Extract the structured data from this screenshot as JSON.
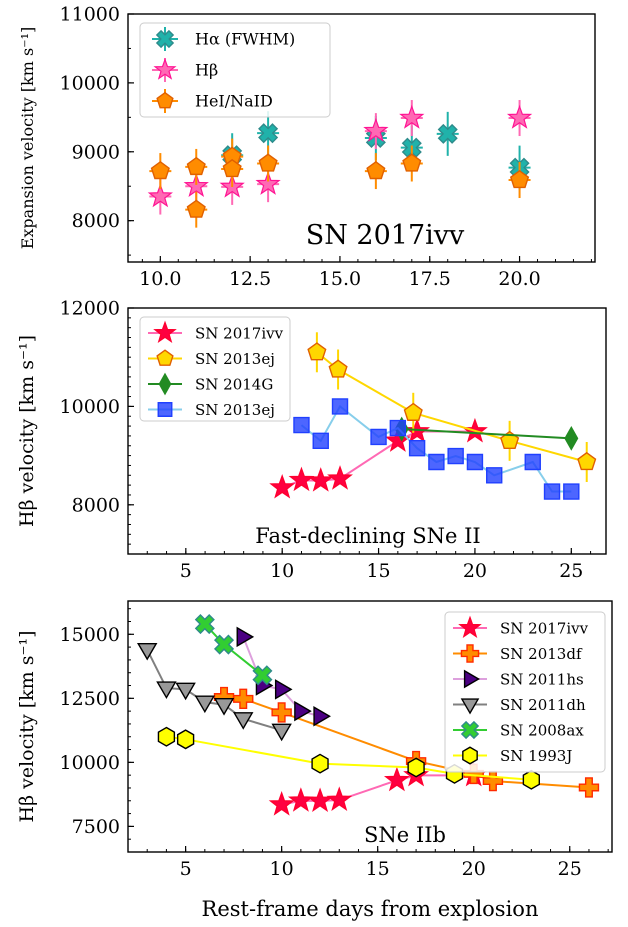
{
  "chart_data": [
    {
      "type": "scatter",
      "annotation": "SN 2017ivv",
      "ylabel": "Expansion velocity [km s⁻¹]",
      "xlim": [
        9.1,
        22.1
      ],
      "ylim": [
        7400,
        11000
      ],
      "xticks": [
        10,
        12.5,
        15,
        17.5,
        20
      ],
      "xtick_labels": [
        "10.0",
        "12.5",
        "15.0",
        "17.5",
        "20.0"
      ],
      "yticks": [
        8000,
        9000,
        10000,
        11000
      ],
      "legend_position": "top-left",
      "series": [
        {
          "name": "Hα (FWHM)",
          "color": "#20b2aa",
          "marker": "x",
          "x": [
            12,
            13,
            16,
            17,
            18,
            20
          ],
          "y": [
            8950,
            9270,
            9200,
            9060,
            9260,
            8770
          ]
        },
        {
          "name": "Hβ",
          "color": "#ff69b4",
          "marker": "star",
          "x": [
            10,
            11,
            12,
            13,
            16,
            17,
            20
          ],
          "y": [
            8350,
            8500,
            8490,
            8530,
            9300,
            9490,
            9490
          ]
        },
        {
          "name": "HeI/NaID",
          "color": "#ff8c00",
          "marker": "pentagon",
          "x": [
            10,
            11,
            11,
            12,
            12,
            13,
            16,
            17,
            20
          ],
          "y": [
            8720,
            8780,
            8160,
            8930,
            8750,
            8830,
            8720,
            8830,
            8590
          ]
        }
      ]
    },
    {
      "type": "line",
      "annotation": "Fast-declining SNe II",
      "ylabel": "Hβ velocity [km s⁻¹]",
      "xlim": [
        2,
        26.8
      ],
      "ylim": [
        7000,
        12000
      ],
      "xticks": [
        5,
        10,
        15,
        20,
        25
      ],
      "yticks": [
        8000,
        10000,
        12000
      ],
      "legend_position": "top-left",
      "series": [
        {
          "name": "SN 2017ivv",
          "color": "#ff0040",
          "marker": "star",
          "x": [
            10,
            11,
            12,
            13,
            16,
            17,
            20
          ],
          "y": [
            8350,
            8500,
            8490,
            8530,
            9300,
            9490,
            9490
          ]
        },
        {
          "name": "SN 2013ej",
          "color": "#ffd700",
          "marker": "pentagon",
          "x": [
            11.8,
            12.9,
            16.8,
            21.8,
            25.8
          ],
          "y": [
            11100,
            10750,
            9870,
            9300,
            8870
          ]
        },
        {
          "name": "SN 2014G",
          "color": "#228b22",
          "marker": "diamond",
          "x": [
            16.2,
            25
          ],
          "y": [
            9540,
            9350
          ]
        },
        {
          "name": "SN 2013ej",
          "color": "#2040ff",
          "marker": "square",
          "x": [
            11,
            12,
            13,
            15,
            16,
            17,
            18,
            19,
            20,
            21,
            23,
            24,
            25
          ],
          "y": [
            9620,
            9300,
            10000,
            9380,
            9560,
            9150,
            8870,
            8990,
            8870,
            8600,
            8870,
            8270,
            8270
          ]
        }
      ]
    },
    {
      "type": "line",
      "annotation": "SNe IIb",
      "ylabel": "Hβ velocity [km s⁻¹]",
      "xlabel": "Rest-frame days from explosion",
      "xlim": [
        2,
        27.2
      ],
      "ylim": [
        6500,
        16300
      ],
      "xticks": [
        5,
        10,
        15,
        20,
        25
      ],
      "yticks": [
        7500,
        10000,
        12500,
        15000
      ],
      "legend_position": "top-right",
      "series": [
        {
          "name": "SN 2017ivv",
          "color": "#ff0040",
          "marker": "star",
          "x": [
            10,
            11,
            12,
            13,
            16,
            17,
            20
          ],
          "y": [
            8350,
            8500,
            8490,
            8530,
            9300,
            9490,
            9490
          ]
        },
        {
          "name": "SN 2013df",
          "color": "#ff8c00",
          "marker": "plus",
          "x": [
            7,
            8,
            10,
            17,
            20,
            21,
            26
          ],
          "y": [
            12550,
            12480,
            11950,
            10050,
            9550,
            9270,
            9020
          ]
        },
        {
          "name": "SN 2011hs",
          "color": "#4b0082",
          "marker": "triangle-right",
          "x": [
            8,
            9,
            10,
            11,
            12
          ],
          "y": [
            14900,
            13000,
            12850,
            12000,
            11800
          ]
        },
        {
          "name": "SN 2011dh",
          "color": "#999999",
          "marker": "triangle-down",
          "x": [
            3,
            4,
            5,
            6,
            7,
            8,
            10
          ],
          "y": [
            14400,
            12900,
            12850,
            12350,
            12250,
            11700,
            11250
          ]
        },
        {
          "name": "SN 2008ax",
          "color": "#32cd32",
          "marker": "x",
          "x": [
            6,
            7,
            9
          ],
          "y": [
            15400,
            14600,
            13400
          ]
        },
        {
          "name": "SN 1993J",
          "color": "#ffff00",
          "marker": "hexagon",
          "x": [
            4,
            5,
            12,
            17,
            19,
            23
          ],
          "y": [
            11000,
            10900,
            9950,
            9800,
            9550,
            9320
          ]
        }
      ]
    }
  ]
}
